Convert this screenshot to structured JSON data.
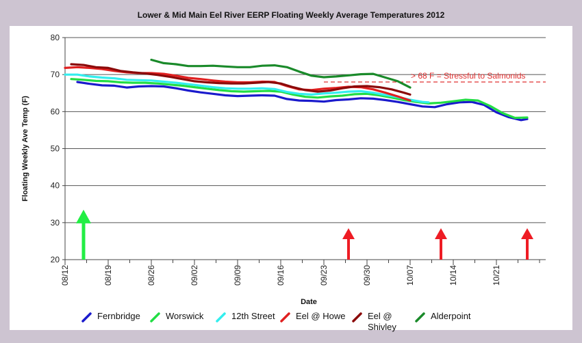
{
  "chart_data": {
    "type": "line",
    "title": "Lower & Mid Main Eel River EERP Floating Weekly Average Temperatures 2012",
    "xlabel": "Date",
    "ylabel": "Floating Weekly Ave Temp (F)",
    "ylim": [
      20,
      80
    ],
    "yticks": [
      20,
      30,
      40,
      50,
      60,
      70,
      80
    ],
    "xticks": [
      "08/12",
      "08/19",
      "08/26",
      "09/02",
      "09/09",
      "09/16",
      "09/23",
      "09/30",
      "10/07",
      "10/14",
      "10/21"
    ],
    "x_range": [
      "08/12",
      "10/29"
    ],
    "grid": "horizontal",
    "threshold": {
      "value": 68,
      "label": "> 68 F = Stressful to Salmonids",
      "color": "#e03030"
    },
    "series": [
      {
        "name": "Fernbridge",
        "color": "#1a1acc",
        "x": [
          "08/14",
          "08/16",
          "08/18",
          "08/20",
          "08/22",
          "08/24",
          "08/26",
          "08/28",
          "08/30",
          "09/01",
          "09/03",
          "09/05",
          "09/07",
          "09/09",
          "09/11",
          "09/13",
          "09/15",
          "09/17",
          "09/19",
          "09/21",
          "09/23",
          "09/25",
          "09/27",
          "09/29",
          "10/01",
          "10/03",
          "10/05",
          "10/07",
          "10/09",
          "10/11",
          "10/13",
          "10/15",
          "10/17",
          "10/19",
          "10/21",
          "10/23",
          "10/25",
          "10/26"
        ],
        "y": [
          68,
          67.5,
          67.1,
          67,
          66.5,
          66.8,
          66.9,
          66.8,
          66.3,
          65.7,
          65.2,
          64.8,
          64.4,
          64.2,
          64.3,
          64.4,
          64.3,
          63.4,
          63,
          62.9,
          62.7,
          63.1,
          63.3,
          63.6,
          63.5,
          63.1,
          62.6,
          62,
          61.4,
          61.2,
          62,
          62.5,
          62.6,
          61.8,
          59.8,
          58.5,
          57.7,
          58
        ]
      },
      {
        "name": "Worswick",
        "color": "#22dd44",
        "x": [
          "08/13",
          "08/15",
          "08/17",
          "08/19",
          "08/21",
          "08/23",
          "08/25",
          "08/27",
          "08/29",
          "08/31",
          "09/02",
          "09/04",
          "09/06",
          "09/08",
          "09/10",
          "09/12",
          "09/14",
          "09/16",
          "09/18",
          "09/20",
          "09/22",
          "09/24",
          "09/26",
          "09/28",
          "09/30",
          "10/02",
          "10/04",
          "10/06",
          "10/08",
          "10/10",
          "10/12",
          "10/14",
          "10/16",
          "10/18",
          "10/20",
          "10/22",
          "10/24",
          "10/26"
        ],
        "y": [
          68.8,
          68.6,
          68.3,
          68.2,
          67.9,
          67.8,
          67.8,
          67.6,
          67.3,
          67,
          66.6,
          66.2,
          65.8,
          65.5,
          65.4,
          65.5,
          65.6,
          65.4,
          64.6,
          64,
          63.8,
          64.1,
          64.3,
          64.7,
          64.8,
          64.4,
          63.8,
          63.1,
          62.6,
          62.2,
          62.4,
          62.8,
          63.2,
          63,
          61.5,
          59.6,
          58.3,
          58.4
        ]
      },
      {
        "name": "12th Street",
        "color": "#33eeee",
        "x": [
          "08/12",
          "08/14",
          "08/16",
          "08/18",
          "08/20",
          "08/22",
          "08/24",
          "08/26",
          "08/28",
          "08/30",
          "09/01",
          "09/03",
          "09/05",
          "09/07",
          "09/09",
          "09/11",
          "09/13",
          "09/15",
          "09/17",
          "09/19",
          "09/21",
          "09/23",
          "09/25",
          "09/27",
          "09/29",
          "10/01",
          "10/03",
          "10/05",
          "10/07",
          "10/09",
          "10/10"
        ],
        "y": [
          70,
          70,
          69.5,
          69.2,
          69,
          68.6,
          68.5,
          68.4,
          68.1,
          67.8,
          67.4,
          67,
          66.6,
          66.3,
          66.2,
          66.2,
          66.3,
          66.1,
          65.3,
          64.8,
          64.6,
          64.9,
          65.1,
          65.4,
          65.5,
          65.1,
          64.5,
          63.9,
          63.2,
          62.6,
          62.5
        ]
      },
      {
        "name": "Eel @ Howe",
        "color": "#e02020",
        "x": [
          "08/12",
          "08/14",
          "08/16",
          "08/18",
          "08/20",
          "08/22",
          "08/24",
          "08/26",
          "08/28",
          "08/30",
          "09/01",
          "09/03",
          "09/05",
          "09/07",
          "09/09",
          "09/11",
          "09/13",
          "09/15",
          "09/17",
          "09/19",
          "09/21",
          "09/23",
          "09/25",
          "09/27",
          "09/29",
          "10/01",
          "10/03",
          "10/05",
          "10/07"
        ],
        "y": [
          71.8,
          72,
          71.8,
          71.5,
          71,
          70.6,
          70.4,
          70.4,
          70.2,
          69.7,
          69.1,
          68.8,
          68.4,
          68.1,
          67.9,
          67.9,
          68.1,
          68,
          66.9,
          66,
          65.8,
          66.2,
          66.4,
          66.7,
          66.6,
          66,
          65.1,
          64.1,
          63
        ]
      },
      {
        "name": "Eel @ Shivley",
        "color": "#8b0a0a",
        "x": [
          "08/13",
          "08/15",
          "08/17",
          "08/19",
          "08/21",
          "08/23",
          "08/25",
          "08/27",
          "08/29",
          "08/31",
          "09/02",
          "09/04",
          "09/06",
          "09/08",
          "09/10",
          "09/12",
          "09/14",
          "09/16",
          "09/18",
          "09/20",
          "09/22",
          "09/24",
          "09/26",
          "09/28",
          "09/30",
          "10/02",
          "10/04",
          "10/06",
          "10/07"
        ],
        "y": [
          72.8,
          72.6,
          72,
          71.8,
          71,
          70.6,
          70.3,
          69.9,
          69.4,
          68.8,
          68.2,
          67.9,
          67.7,
          67.6,
          67.6,
          67.8,
          68,
          67.6,
          66.6,
          65.8,
          65.4,
          65.7,
          66.3,
          66.8,
          66.9,
          66.6,
          66,
          65.1,
          64.6
        ]
      },
      {
        "name": "Alderpoint",
        "color": "#1a8a2a",
        "x": [
          "08/26",
          "08/28",
          "08/30",
          "09/01",
          "09/03",
          "09/05",
          "09/07",
          "09/09",
          "09/11",
          "09/13",
          "09/15",
          "09/17",
          "09/19",
          "09/21",
          "09/23",
          "09/25",
          "09/27",
          "09/29",
          "10/01",
          "10/03",
          "10/05",
          "10/07"
        ],
        "y": [
          74,
          73.1,
          72.8,
          72.3,
          72.3,
          72.4,
          72.2,
          72,
          72,
          72.4,
          72.5,
          72,
          70.8,
          69.7,
          69.3,
          69.5,
          69.8,
          70.1,
          70.2,
          69.2,
          68.2,
          66.5
        ]
      }
    ],
    "annotations": [
      {
        "type": "arrow",
        "color": "#22ee44",
        "x": "08/15",
        "y_top": 33.5
      },
      {
        "type": "arrow",
        "color": "#ee1c24",
        "x": "09/27",
        "y_top": 28.5
      },
      {
        "type": "arrow",
        "color": "#ee1c24",
        "x": "10/12",
        "y_top": 28.5
      },
      {
        "type": "arrow",
        "color": "#ee1c24",
        "x": "10/26",
        "y_top": 28.5
      }
    ]
  }
}
